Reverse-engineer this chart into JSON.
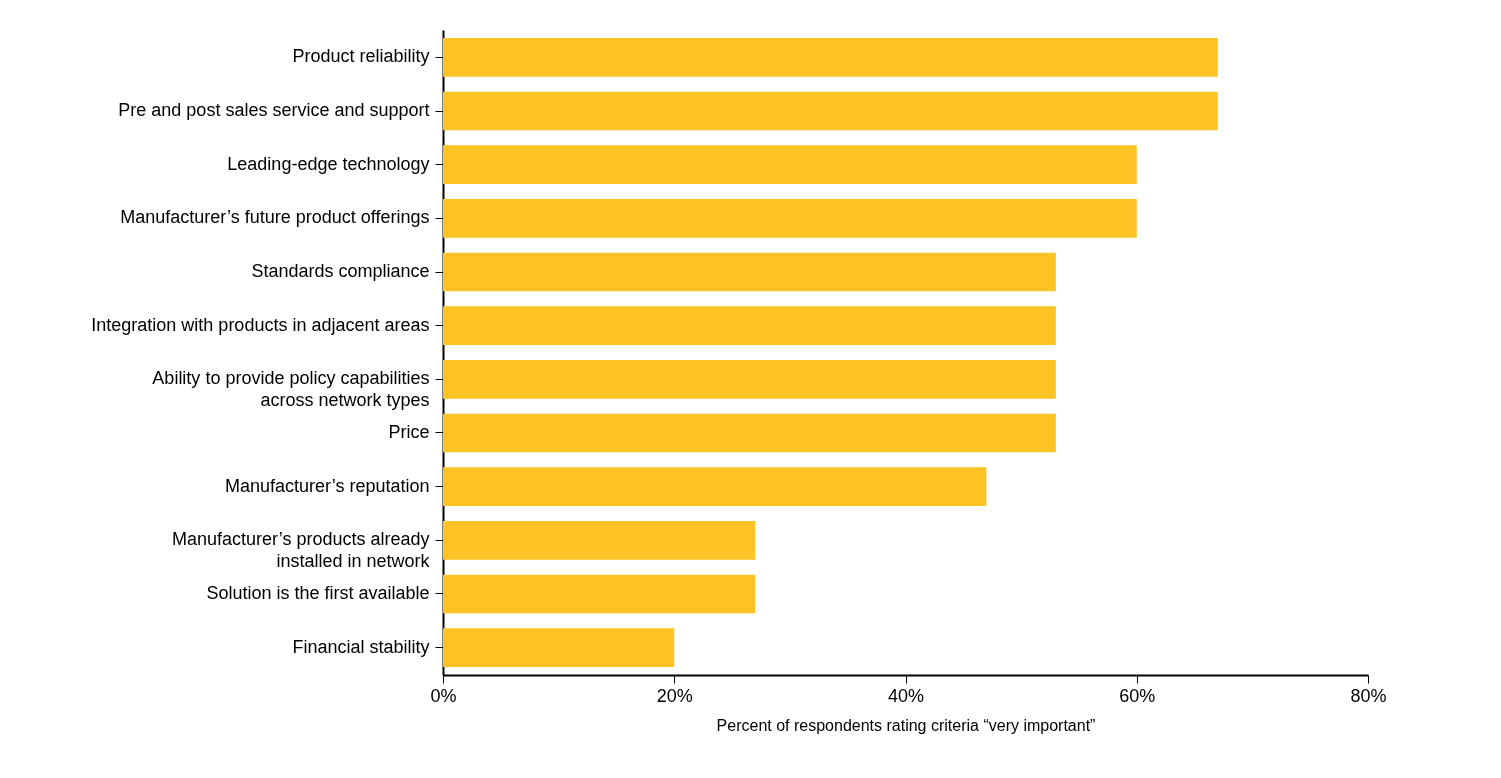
{
  "chart_data": {
    "type": "bar",
    "orientation": "horizontal",
    "categories": [
      "Product reliability",
      "Pre and post sales service and support",
      "Leading-edge technology",
      "Manufacturer’s future product offerings",
      "Standards compliance",
      "Integration with products in adjacent areas",
      "Ability to provide policy capabilities\nacross network types",
      "Price",
      "Manufacturer’s reputation",
      "Manufacturer’s products already\ninstalled in network",
      "Solution is the first available",
      "Financial stability"
    ],
    "values": [
      67,
      67,
      60,
      60,
      53,
      53,
      53,
      53,
      47,
      27,
      27,
      20
    ],
    "color": "#fdc325",
    "xlabel": "Percent of respondents rating criteria “very important”",
    "xlim": [
      0,
      80
    ],
    "xticks": [
      {
        "value": 0,
        "label": "0%"
      },
      {
        "value": 20,
        "label": "20%"
      },
      {
        "value": 40,
        "label": "40%"
      },
      {
        "value": 60,
        "label": "60%"
      },
      {
        "value": 80,
        "label": "80%"
      }
    ],
    "grid": false
  }
}
